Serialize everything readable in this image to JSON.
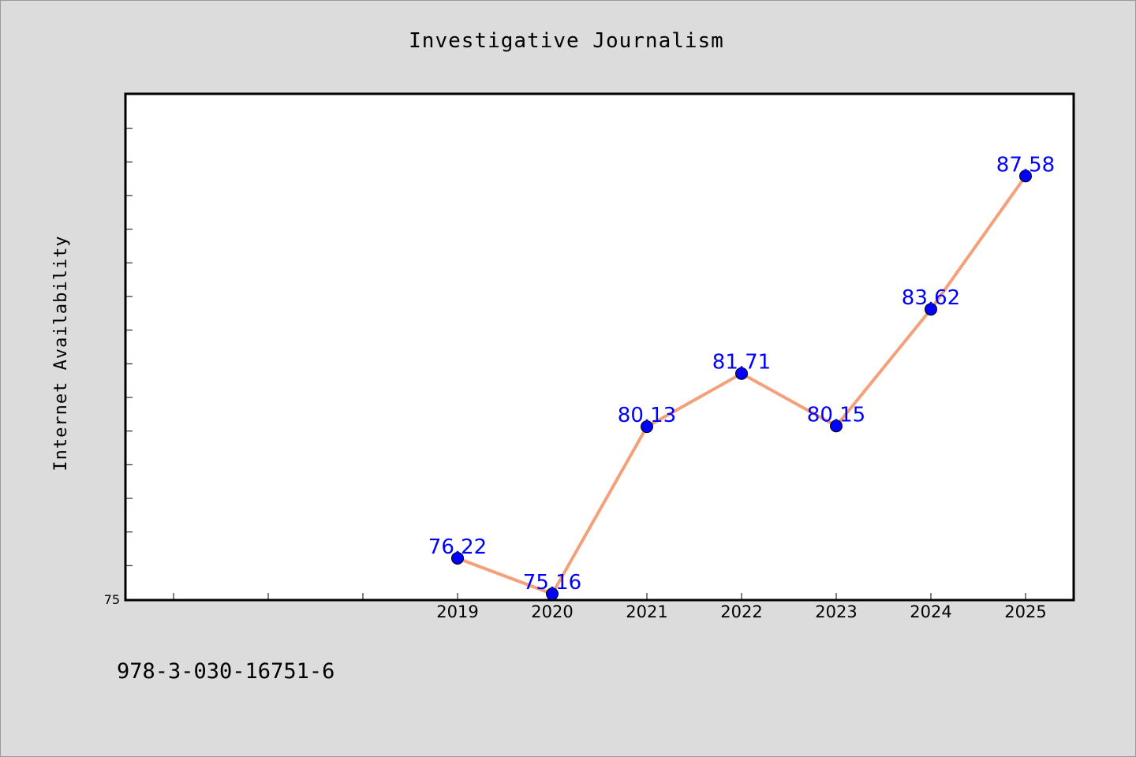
{
  "chart_data": {
    "type": "line",
    "title": "Investigative Journalism",
    "ylabel": "Internet Availability",
    "xlabel": "",
    "categories": [
      "2019",
      "2020",
      "2021",
      "2022",
      "2023",
      "2024",
      "2025"
    ],
    "series": [
      {
        "values": [
          76.22,
          75.16,
          80.13,
          81.71,
          80.15,
          83.62,
          87.58
        ],
        "labels": [
          "76.22",
          "75.16",
          "80.13",
          "81.71",
          "80.15",
          "83.62",
          "87.58"
        ]
      }
    ],
    "ylim": [
      75,
      90
    ],
    "ytick_labels": [
      "75"
    ],
    "grid": false,
    "line_color": "#f4a07a",
    "marker_color": "#0000ff",
    "label_color": "#0000ff"
  },
  "footer": "978-3-030-16751-6"
}
